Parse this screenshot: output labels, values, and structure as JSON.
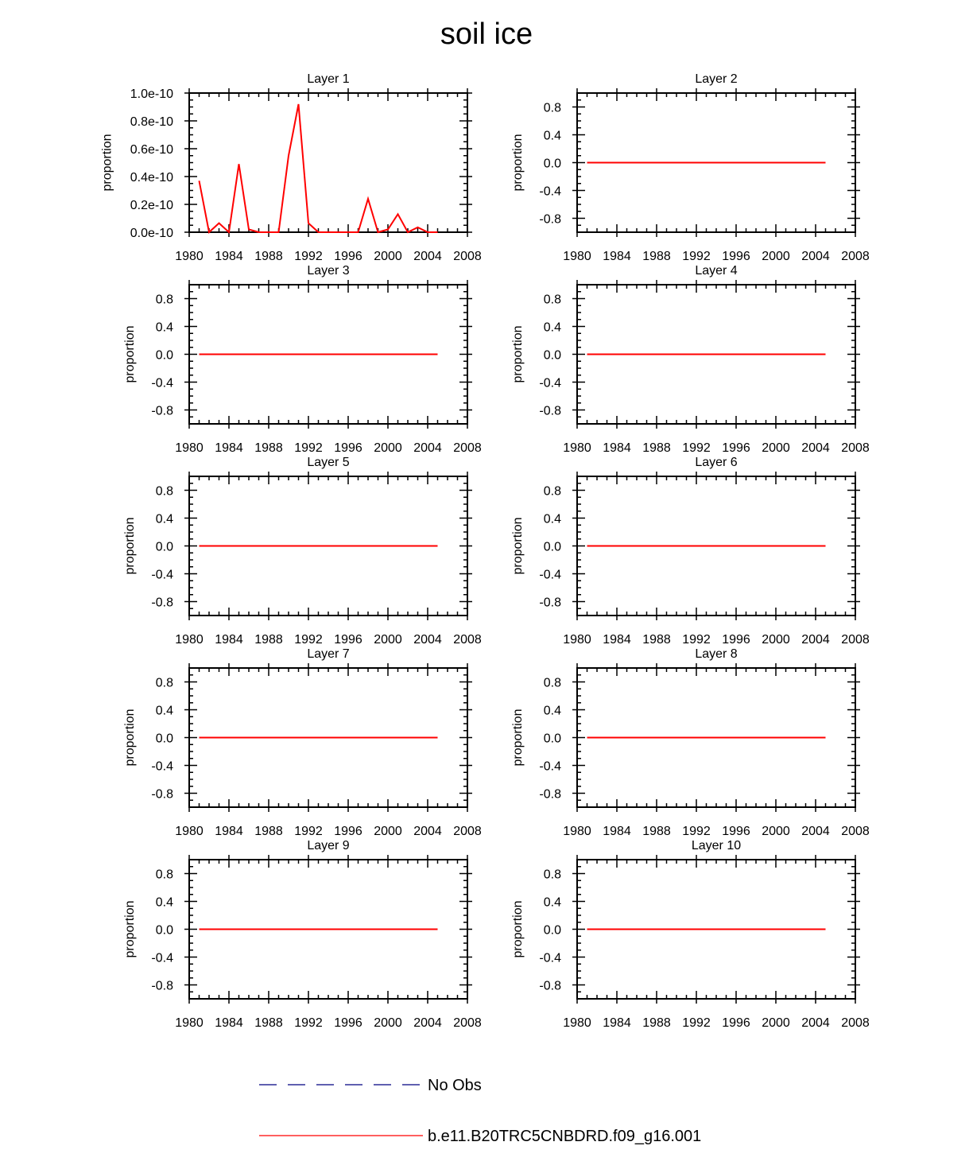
{
  "figure": {
    "title": "soil ice"
  },
  "chart_data": [
    {
      "type": "line",
      "title": "Layer 1",
      "ylabel": "proportion",
      "xlim": [
        1980,
        2008
      ],
      "ylim": [
        0,
        1.0
      ],
      "xticks": [
        "1980",
        "1984",
        "1988",
        "1992",
        "1996",
        "2000",
        "2004",
        "2008"
      ],
      "yticks": [
        {
          "value": 0.0,
          "label": "0.0e-10"
        },
        {
          "value": 0.2,
          "label": "0.2e-10"
        },
        {
          "value": 0.4,
          "label": "0.4e-10"
        },
        {
          "value": 0.6,
          "label": "0.6e-10"
        },
        {
          "value": 0.8,
          "label": "0.8e-10"
        },
        {
          "value": 1.0,
          "label": "1.0e-10"
        }
      ],
      "series": [
        {
          "name": "b.e11.B20TRC5CNBDRD.f09_g16.001",
          "color": "#ff0000",
          "x": [
            1981,
            1982,
            1983,
            1984,
            1985,
            1986,
            1987,
            1988,
            1989,
            1990,
            1991,
            1992,
            1993,
            1994,
            1995,
            1996,
            1997,
            1998,
            1999,
            2000,
            2001,
            2002,
            2003,
            2004,
            2005
          ],
          "y": [
            0.37,
            0.0,
            0.065,
            0.0,
            0.49,
            0.02,
            0.0,
            0.0,
            0.0,
            0.55,
            0.92,
            0.065,
            0.0,
            0.0,
            0.0,
            0.0,
            0.0,
            0.24,
            0.0,
            0.02,
            0.13,
            0.0,
            0.035,
            0.0,
            0.0
          ]
        }
      ]
    },
    {
      "type": "line",
      "title": "Layer 2",
      "ylabel": "proportion",
      "xlim": [
        1980,
        2008
      ],
      "ylim": [
        -1,
        1
      ],
      "xticks": [
        "1980",
        "1984",
        "1988",
        "1992",
        "1996",
        "2000",
        "2004",
        "2008"
      ],
      "yticks": [
        {
          "value": -0.8,
          "label": "-0.8"
        },
        {
          "value": -0.4,
          "label": "-0.4"
        },
        {
          "value": 0.0,
          "label": "0.0"
        },
        {
          "value": 0.4,
          "label": "0.4"
        },
        {
          "value": 0.8,
          "label": "0.8"
        }
      ],
      "series": [
        {
          "name": "b.e11.B20TRC5CNBDRD.f09_g16.001",
          "color": "#ff0000",
          "x": [
            1981,
            2005
          ],
          "y": [
            0,
            0
          ]
        }
      ]
    },
    {
      "type": "line",
      "title": "Layer 3",
      "ylabel": "proportion",
      "xlim": [
        1980,
        2008
      ],
      "ylim": [
        -1,
        1
      ],
      "xticks": [
        "1980",
        "1984",
        "1988",
        "1992",
        "1996",
        "2000",
        "2004",
        "2008"
      ],
      "yticks": [
        {
          "value": -0.8,
          "label": "-0.8"
        },
        {
          "value": -0.4,
          "label": "-0.4"
        },
        {
          "value": 0.0,
          "label": "0.0"
        },
        {
          "value": 0.4,
          "label": "0.4"
        },
        {
          "value": 0.8,
          "label": "0.8"
        }
      ],
      "series": [
        {
          "name": "b.e11.B20TRC5CNBDRD.f09_g16.001",
          "color": "#ff0000",
          "x": [
            1981,
            2005
          ],
          "y": [
            0,
            0
          ]
        }
      ]
    },
    {
      "type": "line",
      "title": "Layer 4",
      "ylabel": "proportion",
      "xlim": [
        1980,
        2008
      ],
      "ylim": [
        -1,
        1
      ],
      "xticks": [
        "1980",
        "1984",
        "1988",
        "1992",
        "1996",
        "2000",
        "2004",
        "2008"
      ],
      "yticks": [
        {
          "value": -0.8,
          "label": "-0.8"
        },
        {
          "value": -0.4,
          "label": "-0.4"
        },
        {
          "value": 0.0,
          "label": "0.0"
        },
        {
          "value": 0.4,
          "label": "0.4"
        },
        {
          "value": 0.8,
          "label": "0.8"
        }
      ],
      "series": [
        {
          "name": "b.e11.B20TRC5CNBDRD.f09_g16.001",
          "color": "#ff0000",
          "x": [
            1981,
            2005
          ],
          "y": [
            0,
            0
          ]
        }
      ]
    },
    {
      "type": "line",
      "title": "Layer 5",
      "ylabel": "proportion",
      "xlim": [
        1980,
        2008
      ],
      "ylim": [
        -1,
        1
      ],
      "xticks": [
        "1980",
        "1984",
        "1988",
        "1992",
        "1996",
        "2000",
        "2004",
        "2008"
      ],
      "yticks": [
        {
          "value": -0.8,
          "label": "-0.8"
        },
        {
          "value": -0.4,
          "label": "-0.4"
        },
        {
          "value": 0.0,
          "label": "0.0"
        },
        {
          "value": 0.4,
          "label": "0.4"
        },
        {
          "value": 0.8,
          "label": "0.8"
        }
      ],
      "series": [
        {
          "name": "b.e11.B20TRC5CNBDRD.f09_g16.001",
          "color": "#ff0000",
          "x": [
            1981,
            2005
          ],
          "y": [
            0,
            0
          ]
        }
      ]
    },
    {
      "type": "line",
      "title": "Layer 6",
      "ylabel": "proportion",
      "xlim": [
        1980,
        2008
      ],
      "ylim": [
        -1,
        1
      ],
      "xticks": [
        "1980",
        "1984",
        "1988",
        "1992",
        "1996",
        "2000",
        "2004",
        "2008"
      ],
      "yticks": [
        {
          "value": -0.8,
          "label": "-0.8"
        },
        {
          "value": -0.4,
          "label": "-0.4"
        },
        {
          "value": 0.0,
          "label": "0.0"
        },
        {
          "value": 0.4,
          "label": "0.4"
        },
        {
          "value": 0.8,
          "label": "0.8"
        }
      ],
      "series": [
        {
          "name": "b.e11.B20TRC5CNBDRD.f09_g16.001",
          "color": "#ff0000",
          "x": [
            1981,
            2005
          ],
          "y": [
            0,
            0
          ]
        }
      ]
    },
    {
      "type": "line",
      "title": "Layer 7",
      "ylabel": "proportion",
      "xlim": [
        1980,
        2008
      ],
      "ylim": [
        -1,
        1
      ],
      "xticks": [
        "1980",
        "1984",
        "1988",
        "1992",
        "1996",
        "2000",
        "2004",
        "2008"
      ],
      "yticks": [
        {
          "value": -0.8,
          "label": "-0.8"
        },
        {
          "value": -0.4,
          "label": "-0.4"
        },
        {
          "value": 0.0,
          "label": "0.0"
        },
        {
          "value": 0.4,
          "label": "0.4"
        },
        {
          "value": 0.8,
          "label": "0.8"
        }
      ],
      "series": [
        {
          "name": "b.e11.B20TRC5CNBDRD.f09_g16.001",
          "color": "#ff0000",
          "x": [
            1981,
            2005
          ],
          "y": [
            0,
            0
          ]
        }
      ]
    },
    {
      "type": "line",
      "title": "Layer 8",
      "ylabel": "proportion",
      "xlim": [
        1980,
        2008
      ],
      "ylim": [
        -1,
        1
      ],
      "xticks": [
        "1980",
        "1984",
        "1988",
        "1992",
        "1996",
        "2000",
        "2004",
        "2008"
      ],
      "yticks": [
        {
          "value": -0.8,
          "label": "-0.8"
        },
        {
          "value": -0.4,
          "label": "-0.4"
        },
        {
          "value": 0.0,
          "label": "0.0"
        },
        {
          "value": 0.4,
          "label": "0.4"
        },
        {
          "value": 0.8,
          "label": "0.8"
        }
      ],
      "series": [
        {
          "name": "b.e11.B20TRC5CNBDRD.f09_g16.001",
          "color": "#ff0000",
          "x": [
            1981,
            2005
          ],
          "y": [
            0,
            0
          ]
        }
      ]
    },
    {
      "type": "line",
      "title": "Layer 9",
      "ylabel": "proportion",
      "xlim": [
        1980,
        2008
      ],
      "ylim": [
        -1,
        1
      ],
      "xticks": [
        "1980",
        "1984",
        "1988",
        "1992",
        "1996",
        "2000",
        "2004",
        "2008"
      ],
      "yticks": [
        {
          "value": -0.8,
          "label": "-0.8"
        },
        {
          "value": -0.4,
          "label": "-0.4"
        },
        {
          "value": 0.0,
          "label": "0.0"
        },
        {
          "value": 0.4,
          "label": "0.4"
        },
        {
          "value": 0.8,
          "label": "0.8"
        }
      ],
      "series": [
        {
          "name": "b.e11.B20TRC5CNBDRD.f09_g16.001",
          "color": "#ff0000",
          "x": [
            1981,
            2005
          ],
          "y": [
            0,
            0
          ]
        }
      ]
    },
    {
      "type": "line",
      "title": "Layer 10",
      "ylabel": "proportion",
      "xlim": [
        1980,
        2008
      ],
      "ylim": [
        -1,
        1
      ],
      "xticks": [
        "1980",
        "1984",
        "1988",
        "1992",
        "1996",
        "2000",
        "2004",
        "2008"
      ],
      "yticks": [
        {
          "value": -0.8,
          "label": "-0.8"
        },
        {
          "value": -0.4,
          "label": "-0.4"
        },
        {
          "value": 0.0,
          "label": "0.0"
        },
        {
          "value": 0.4,
          "label": "0.4"
        },
        {
          "value": 0.8,
          "label": "0.8"
        }
      ],
      "series": [
        {
          "name": "b.e11.B20TRC5CNBDRD.f09_g16.001",
          "color": "#ff0000",
          "x": [
            1981,
            2005
          ],
          "y": [
            0,
            0
          ]
        }
      ]
    }
  ],
  "legend": {
    "entries": [
      {
        "label": "No Obs",
        "color": "#000080",
        "style": "dashed"
      },
      {
        "label": "b.e11.B20TRC5CNBDRD.f09_g16.001",
        "color": "#ff0000",
        "style": "solid"
      }
    ]
  }
}
